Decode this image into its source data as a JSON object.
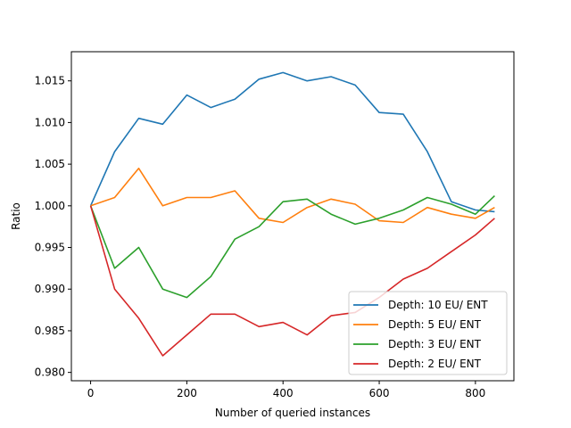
{
  "chart_data": {
    "type": "line",
    "title": "",
    "xlabel": "Number of queried instances",
    "ylabel": "Ratio",
    "xlim": [
      -40,
      880
    ],
    "ylim": [
      0.979,
      1.0185
    ],
    "xticks": [
      0,
      200,
      400,
      600,
      800
    ],
    "xtick_labels": [
      "0",
      "200",
      "400",
      "600",
      "800"
    ],
    "yticks": [
      0.98,
      0.985,
      0.99,
      0.995,
      1.0,
      1.005,
      1.01,
      1.015
    ],
    "ytick_labels": [
      "0.980",
      "0.985",
      "0.990",
      "0.995",
      "1.000",
      "1.005",
      "1.010",
      "1.015"
    ],
    "grid": false,
    "legend_position": "lower-right",
    "x": [
      0,
      50,
      100,
      150,
      200,
      250,
      300,
      350,
      400,
      450,
      500,
      550,
      600,
      650,
      700,
      750,
      800,
      840
    ],
    "series": [
      {
        "name": "Depth: 10 EU/ ENT",
        "color": "#1f77b4",
        "values": [
          1.0,
          1.0065,
          1.0105,
          1.0098,
          1.0133,
          1.0118,
          1.0128,
          1.0152,
          1.016,
          1.015,
          1.0155,
          1.0145,
          1.0112,
          1.011,
          1.0065,
          1.0005,
          0.9995,
          0.9993
        ]
      },
      {
        "name": "Depth: 5 EU/ ENT",
        "color": "#ff7f0e",
        "values": [
          1.0,
          1.001,
          1.0045,
          1.0,
          1.001,
          1.001,
          1.0018,
          0.9985,
          0.998,
          0.9998,
          1.0008,
          1.0002,
          0.9982,
          0.998,
          0.9998,
          0.999,
          0.9985,
          0.9998
        ]
      },
      {
        "name": "Depth: 3 EU/ ENT",
        "color": "#2ca02c",
        "values": [
          1.0,
          0.9925,
          0.995,
          0.99,
          0.989,
          0.9915,
          0.996,
          0.9975,
          1.0005,
          1.0008,
          0.999,
          0.9978,
          0.9985,
          0.9995,
          1.001,
          1.0002,
          0.999,
          1.0012
        ]
      },
      {
        "name": "Depth: 2 EU/ ENT",
        "color": "#d62728",
        "values": [
          1.0,
          0.99,
          0.9865,
          0.982,
          0.9845,
          0.987,
          0.987,
          0.9855,
          0.986,
          0.9845,
          0.9868,
          0.9872,
          0.989,
          0.9912,
          0.9925,
          0.9945,
          0.9965,
          0.9985
        ]
      }
    ]
  }
}
